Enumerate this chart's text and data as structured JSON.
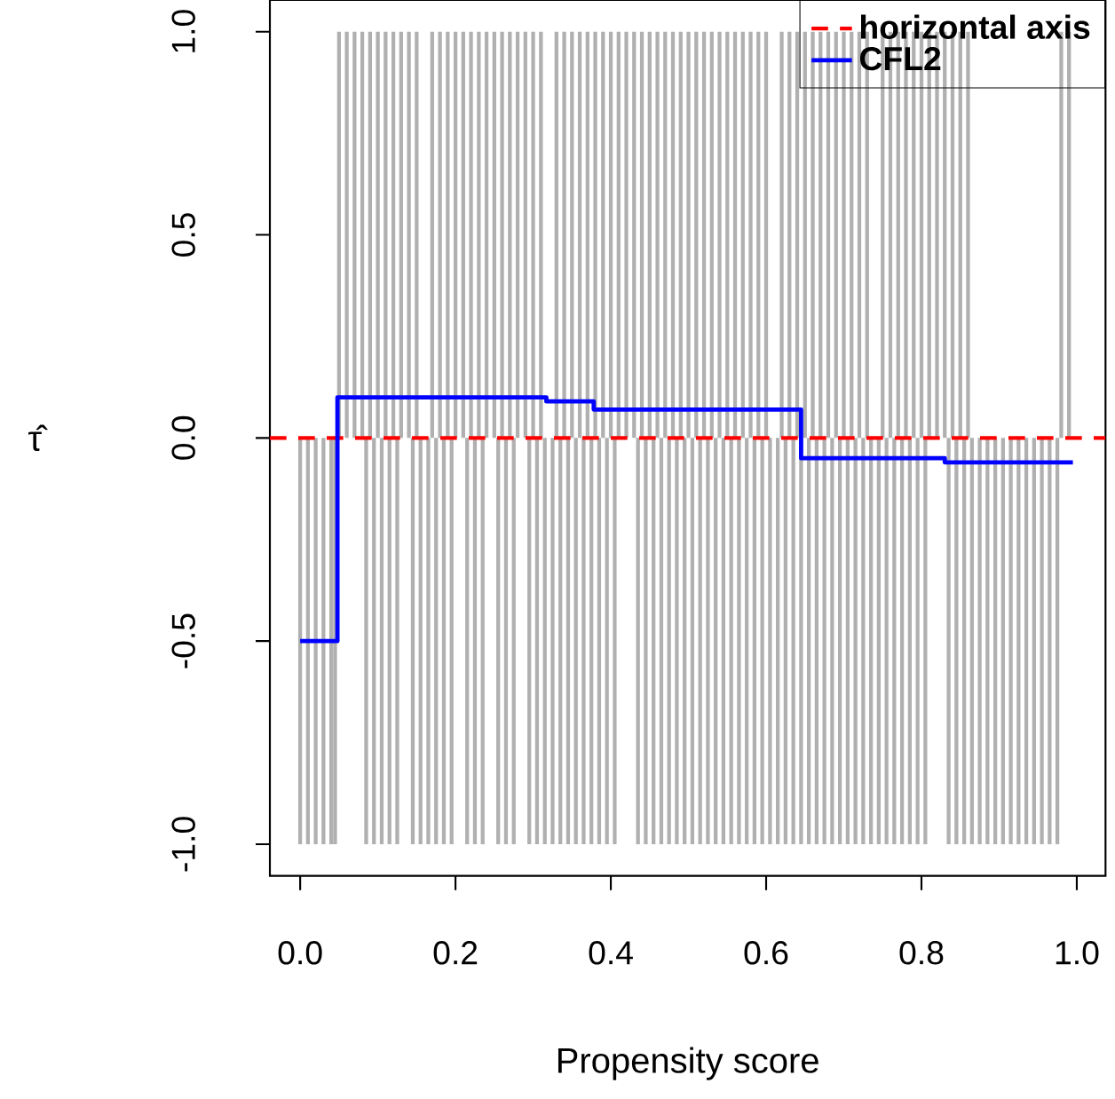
{
  "chart_data": {
    "type": "line",
    "xlabel": "Propensity score",
    "ylabel": "τ̂",
    "xlim": [
      -0.039,
      1.037
    ],
    "ylim": [
      -1.078,
      1.078
    ],
    "xticks": [
      {
        "value": 0,
        "label": "0.0"
      },
      {
        "value": 0.2,
        "label": "0.2"
      },
      {
        "value": 0.4,
        "label": "0.4"
      },
      {
        "value": 0.6,
        "label": "0.6"
      },
      {
        "value": 0.8,
        "label": "0.8"
      },
      {
        "value": 1,
        "label": "1.0"
      }
    ],
    "yticks": [
      {
        "value": -1,
        "label": "-1.0"
      },
      {
        "value": -0.5,
        "label": "-0.5"
      },
      {
        "value": 0,
        "label": "0.0"
      },
      {
        "value": 0.5,
        "label": "0.5"
      },
      {
        "value": 1,
        "label": "1.0"
      }
    ],
    "legend": "top right",
    "series": [
      {
        "type": "bar",
        "color": "#b0b0b0",
        "x": [
          0,
          0.01,
          0.02,
          0.03,
          0.04,
          0.045,
          0.05,
          0.06,
          0.07,
          0.08,
          0.085,
          0.09,
          0.095,
          0.1,
          0.105,
          0.11,
          0.115,
          0.12,
          0.125,
          0.13,
          0.14,
          0.145,
          0.15,
          0.155,
          0.165,
          0.17,
          0.175,
          0.18,
          0.185,
          0.19,
          0.195,
          0.2,
          0.21,
          0.215,
          0.22,
          0.225,
          0.23,
          0.235,
          0.24,
          0.25,
          0.255,
          0.26,
          0.265,
          0.27,
          0.275,
          0.28,
          0.29,
          0.295,
          0.3,
          0.305,
          0.31,
          0.315,
          0.325,
          0.33,
          0.335,
          0.34,
          0.345,
          0.35,
          0.355,
          0.36,
          0.365,
          0.37,
          0.375,
          0.38,
          0.385,
          0.39,
          0.395,
          0.4,
          0.405,
          0.41,
          0.42,
          0.43,
          0.435,
          0.44,
          0.445,
          0.45,
          0.455,
          0.46,
          0.465,
          0.47,
          0.475,
          0.48,
          0.485,
          0.49,
          0.495,
          0.5,
          0.505,
          0.51,
          0.515,
          0.52,
          0.525,
          0.53,
          0.535,
          0.54,
          0.545,
          0.55,
          0.555,
          0.56,
          0.565,
          0.57,
          0.575,
          0.58,
          0.585,
          0.59,
          0.595,
          0.6,
          0.605,
          0.615,
          0.62,
          0.625,
          0.63,
          0.635,
          0.64,
          0.645,
          0.65,
          0.655,
          0.66,
          0.665,
          0.67,
          0.675,
          0.68,
          0.685,
          0.69,
          0.695,
          0.7,
          0.705,
          0.71,
          0.715,
          0.72,
          0.725,
          0.73,
          0.735,
          0.745,
          0.75,
          0.755,
          0.76,
          0.765,
          0.77,
          0.775,
          0.78,
          0.785,
          0.79,
          0.795,
          0.8,
          0.805,
          0.81,
          0.82,
          0.83,
          0.835,
          0.84,
          0.845,
          0.85,
          0.855,
          0.86,
          0.865,
          0.875,
          0.885,
          0.895,
          0.905,
          0.915,
          0.925,
          0.935,
          0.945,
          0.955,
          0.965,
          0.975,
          0.98,
          0.99
        ],
        "values": [
          -1,
          -1,
          -1,
          -1,
          -1,
          -1,
          1,
          1,
          1,
          1,
          -1,
          1,
          -1,
          1,
          -1,
          1,
          -1,
          1,
          -1,
          1,
          1,
          -1,
          1,
          -1,
          -1,
          1,
          -1,
          1,
          -1,
          1,
          -1,
          1,
          1,
          -1,
          1,
          -1,
          1,
          -1,
          1,
          1,
          -1,
          1,
          -1,
          1,
          -1,
          1,
          1,
          -1,
          1,
          -1,
          1,
          -1,
          -1,
          1,
          -1,
          1,
          -1,
          1,
          -1,
          1,
          -1,
          1,
          -1,
          1,
          -1,
          1,
          -1,
          1,
          -1,
          1,
          1,
          1,
          -1,
          1,
          -1,
          1,
          -1,
          1,
          -1,
          1,
          -1,
          1,
          -1,
          1,
          -1,
          1,
          -1,
          1,
          -1,
          1,
          -1,
          1,
          -1,
          1,
          -1,
          1,
          -1,
          1,
          -1,
          1,
          -1,
          1,
          -1,
          1,
          -1,
          1,
          -1,
          -1,
          1,
          -1,
          1,
          -1,
          1,
          -1,
          1,
          -1,
          1,
          -1,
          1,
          -1,
          1,
          -1,
          1,
          -1,
          1,
          -1,
          1,
          -1,
          1,
          -1,
          1,
          -1,
          -1,
          1,
          -1,
          1,
          -1,
          1,
          -1,
          1,
          -1,
          1,
          -1,
          1,
          -1,
          1,
          1,
          1,
          -1,
          1,
          -1,
          1,
          -1,
          1,
          -1,
          -1,
          -1,
          -1,
          -1,
          -1,
          -1,
          -1,
          -1,
          -1,
          -1,
          -1,
          1,
          1
        ]
      },
      {
        "name": "horizontal axis",
        "color": "#ff0000",
        "line_style": "dashed",
        "x": [
          -0.039,
          1.037
        ],
        "values": [
          0,
          0
        ]
      },
      {
        "name": "CFL2",
        "type": "step",
        "color": "#0000ff",
        "line_style": "solid",
        "x": [
          0,
          0.048,
          0.317,
          0.378,
          0.645,
          0.83,
          0.995
        ],
        "values": [
          -0.5,
          0.1,
          0.09,
          0.07,
          -0.05,
          -0.06,
          -0.06
        ]
      }
    ]
  }
}
